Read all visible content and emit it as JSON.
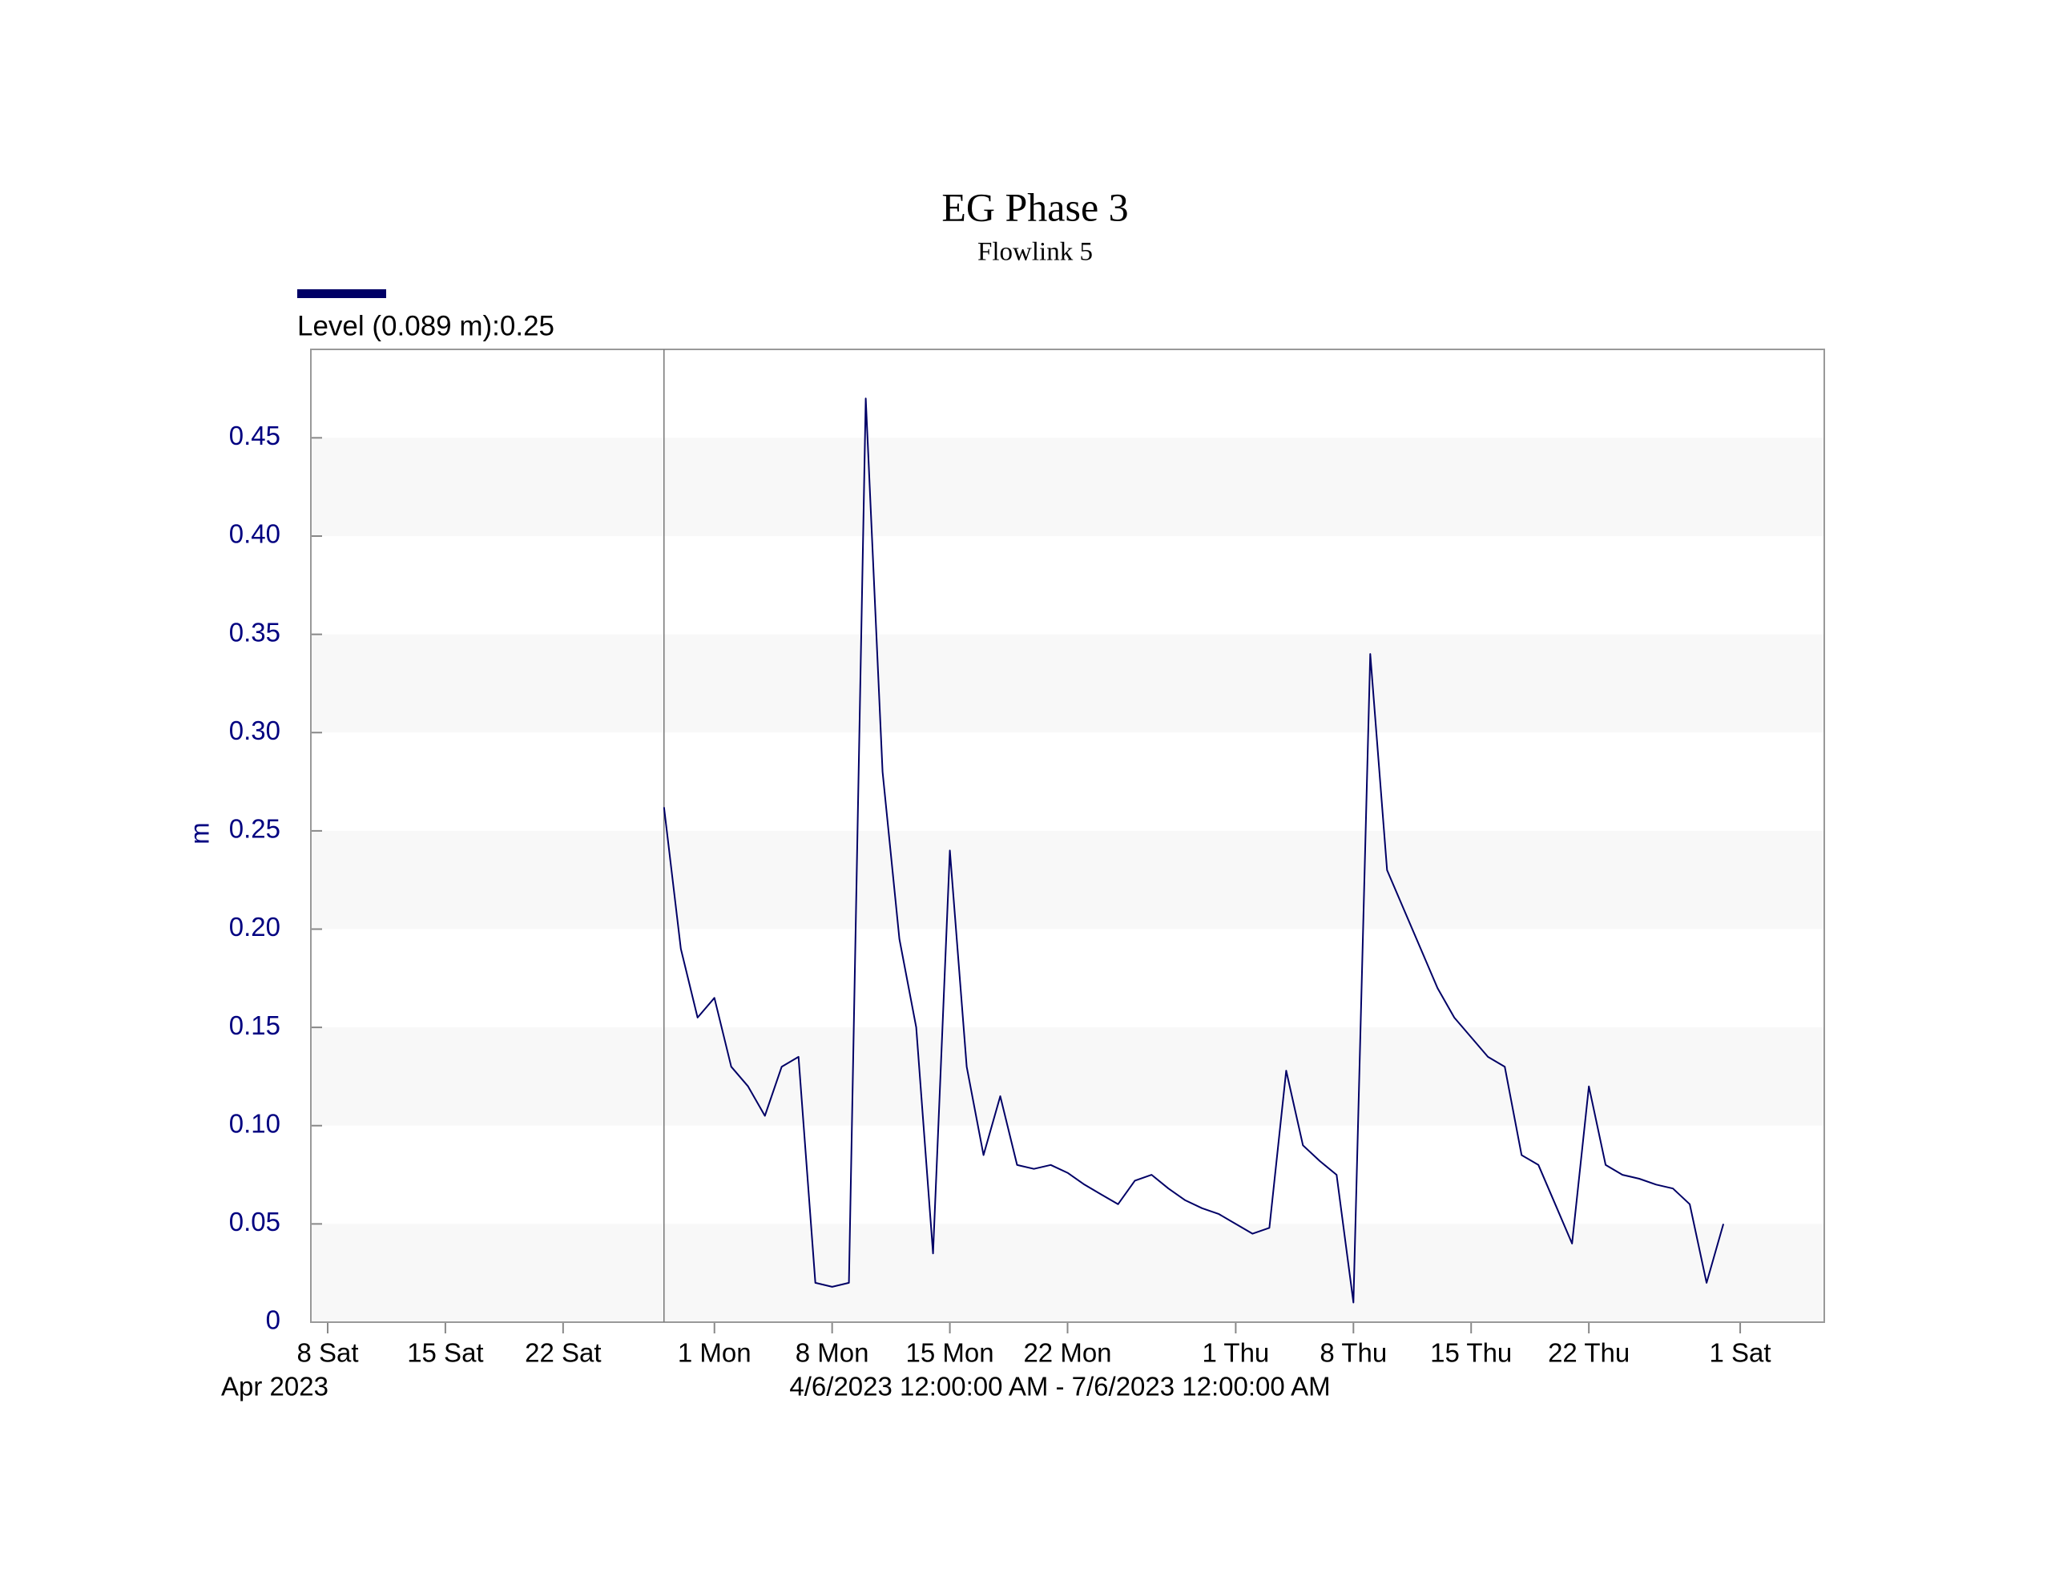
{
  "chart_data": {
    "type": "line",
    "title": "EG Phase 3",
    "subtitle": "Flowlink 5",
    "y_label": "m",
    "x_label_secondary": "Apr 2023",
    "x_label": "4/6/2023 12:00:00 AM - 7/6/2023 12:00:00 AM",
    "x": [
      "2023-04-28",
      "2023-04-29",
      "2023-04-30",
      "2023-05-01",
      "2023-05-02",
      "2023-05-03",
      "2023-05-04",
      "2023-05-05",
      "2023-05-06",
      "2023-05-07",
      "2023-05-08",
      "2023-05-09",
      "2023-05-10",
      "2023-05-11",
      "2023-05-12",
      "2023-05-13",
      "2023-05-14",
      "2023-05-15",
      "2023-05-16",
      "2023-05-17",
      "2023-05-18",
      "2023-05-19",
      "2023-05-20",
      "2023-05-21",
      "2023-05-22",
      "2023-05-23",
      "2023-05-24",
      "2023-05-25",
      "2023-05-26",
      "2023-05-27",
      "2023-05-28",
      "2023-05-29",
      "2023-05-30",
      "2023-05-31",
      "2023-06-01",
      "2023-06-02",
      "2023-06-03",
      "2023-06-04",
      "2023-06-05",
      "2023-06-06",
      "2023-06-07",
      "2023-06-08",
      "2023-06-09",
      "2023-06-10",
      "2023-06-11",
      "2023-06-12",
      "2023-06-13",
      "2023-06-14",
      "2023-06-15",
      "2023-06-16",
      "2023-06-17",
      "2023-06-18",
      "2023-06-19",
      "2023-06-20",
      "2023-06-21",
      "2023-06-22",
      "2023-06-23",
      "2023-06-24",
      "2023-06-25",
      "2023-06-26",
      "2023-06-27",
      "2023-06-28",
      "2023-06-29",
      "2023-06-30"
    ],
    "series": [
      {
        "name": "Level (0.089 m):0.25",
        "color": "#000066",
        "values": [
          0.262,
          0.19,
          0.155,
          0.165,
          0.13,
          0.12,
          0.105,
          0.13,
          0.135,
          0.02,
          0.018,
          0.02,
          0.47,
          0.28,
          0.195,
          0.15,
          0.035,
          0.24,
          0.13,
          0.085,
          0.115,
          0.08,
          0.078,
          0.08,
          0.076,
          0.07,
          0.065,
          0.06,
          0.072,
          0.075,
          0.068,
          0.062,
          0.058,
          0.055,
          0.05,
          0.045,
          0.048,
          0.128,
          0.09,
          0.082,
          0.075,
          0.01,
          0.34,
          0.23,
          0.21,
          0.19,
          0.17,
          0.155,
          0.145,
          0.135,
          0.13,
          0.085,
          0.08,
          0.06,
          0.04,
          0.12,
          0.08,
          0.075,
          0.073,
          0.07,
          0.068,
          0.06,
          0.02,
          0.05
        ]
      }
    ],
    "xlim": [
      "2023-04-07",
      "2023-07-06"
    ],
    "xticks": [
      {
        "value": "2023-04-08",
        "label": "8 Sat"
      },
      {
        "value": "2023-04-15",
        "label": "15 Sat"
      },
      {
        "value": "2023-04-22",
        "label": "22 Sat"
      },
      {
        "value": "2023-05-01",
        "label": "1 Mon"
      },
      {
        "value": "2023-05-08",
        "label": "8 Mon"
      },
      {
        "value": "2023-05-15",
        "label": "15 Mon"
      },
      {
        "value": "2023-05-22",
        "label": "22 Mon"
      },
      {
        "value": "2023-06-01",
        "label": "1 Thu"
      },
      {
        "value": "2023-06-08",
        "label": "8 Thu"
      },
      {
        "value": "2023-06-15",
        "label": "15 Thu"
      },
      {
        "value": "2023-06-22",
        "label": "22 Thu"
      },
      {
        "value": "2023-07-01",
        "label": "1 Sat"
      }
    ],
    "ylim": [
      0,
      0.495
    ],
    "yticks": [
      0,
      0.05,
      {
        "value": 0.1,
        "label": "0.10"
      },
      0.15,
      {
        "value": 0.2,
        "label": "0.20"
      },
      0.25,
      {
        "value": 0.3,
        "label": "0.30"
      },
      0.35,
      {
        "value": 0.4,
        "label": "0.40"
      },
      0.45
    ],
    "grid": true,
    "band_color": "#f8f8f8",
    "axis_text_color": "#000080"
  }
}
